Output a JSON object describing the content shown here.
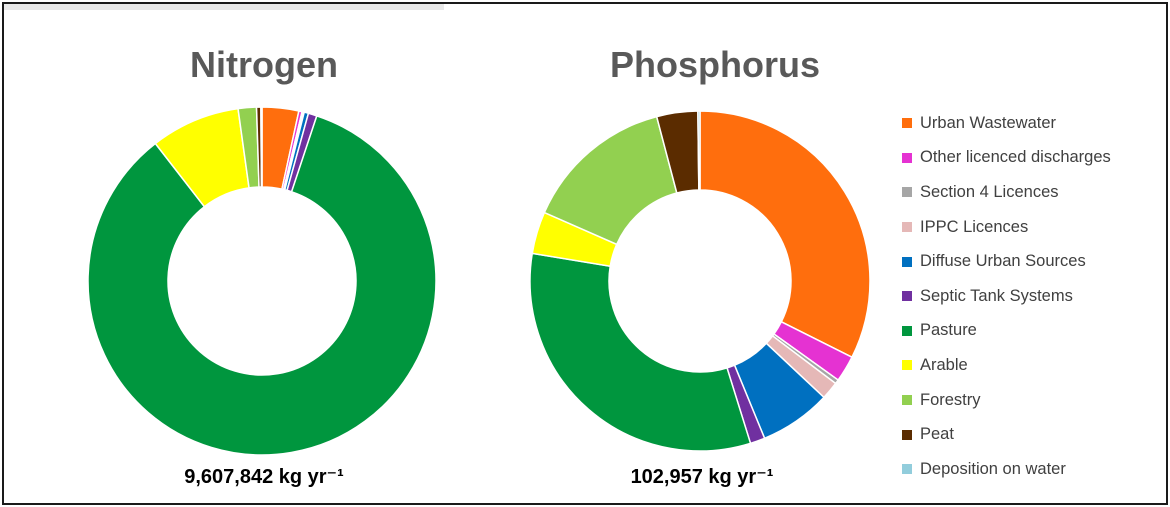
{
  "chart_data": [
    {
      "type": "pie",
      "title": "Nitrogen",
      "total_label": "9,607,842 kg yr⁻¹",
      "categories": [
        "Urban Wastewater",
        "Other licenced discharges",
        "Section 4 Licences",
        "IPPC Licences",
        "Diffuse Urban Sources",
        "Septic Tank Systems",
        "Pasture",
        "Arable",
        "Forestry",
        "Peat",
        "Deposition on water"
      ],
      "values": [
        3.4,
        0.3,
        0.1,
        0.1,
        0.4,
        0.8,
        84.4,
        8.3,
        1.7,
        0.4,
        0.1
      ]
    },
    {
      "type": "pie",
      "title": "Phosphorus",
      "total_label": "102,957 kg yr⁻¹",
      "categories": [
        "Urban Wastewater",
        "Other licenced discharges",
        "Section 4 Licences",
        "IPPC Licences",
        "Diffuse Urban Sources",
        "Septic Tank Systems",
        "Pasture",
        "Arable",
        "Forestry",
        "Peat",
        "Deposition on water"
      ],
      "values": [
        32.4,
        2.5,
        0.4,
        1.7,
        6.8,
        1.4,
        32.4,
        4.0,
        14.3,
        3.9,
        0.2
      ]
    }
  ],
  "legend": [
    {
      "label": "Urban Wastewater",
      "color": "#FF6E0D"
    },
    {
      "label": "Other licenced discharges",
      "color": "#E532D2"
    },
    {
      "label": "Section 4 Licences",
      "color": "#A6A6A6"
    },
    {
      "label": "IPPC Licences",
      "color": "#E5B8B7"
    },
    {
      "label": "Diffuse Urban Sources",
      "color": "#0070C0"
    },
    {
      "label": "Septic Tank Systems",
      "color": "#7030A0"
    },
    {
      "label": "Pasture",
      "color": "#00963E"
    },
    {
      "label": "Arable",
      "color": "#FFFF00"
    },
    {
      "label": "Forestry",
      "color": "#92D050"
    },
    {
      "label": "Peat",
      "color": "#5B2C00"
    },
    {
      "label": "Deposition on water",
      "color": "#92CDDC"
    }
  ],
  "legend_position": "right"
}
